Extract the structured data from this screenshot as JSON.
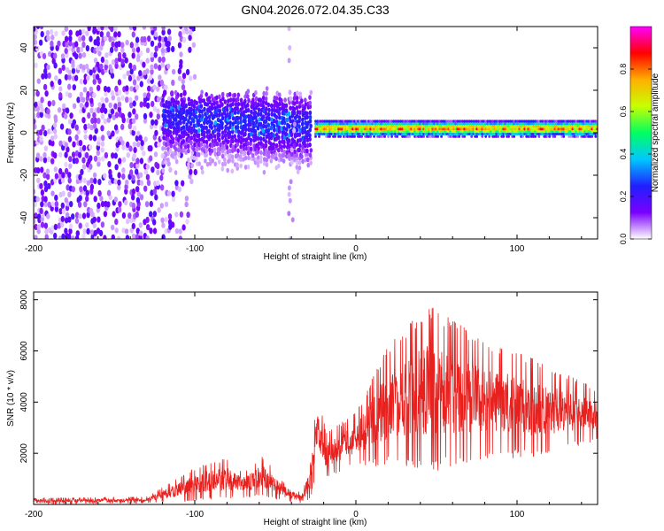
{
  "title": "GN04.2026.072.04.35.C33",
  "chart_data": [
    {
      "type": "heatmap",
      "panel": "spectrogram",
      "xlabel": "Height of straight line (km)",
      "ylabel": "Frequency (Hz)",
      "xlim": [
        -200,
        150
      ],
      "ylim": [
        -50,
        50
      ],
      "x_ticks": [
        -200,
        -100,
        0,
        100
      ],
      "x_tick_labels": [
        "-200",
        "-100",
        "0",
        "100"
      ],
      "y_ticks": [
        -40,
        -20,
        0,
        20,
        40
      ],
      "y_tick_labels": [
        "-40",
        "-20",
        "0",
        "20",
        "40"
      ],
      "colorbar": {
        "label": "Normalized spectral amplitude",
        "range": [
          0,
          1
        ],
        "ticks": [
          0.0,
          0.2,
          0.4,
          0.6,
          0.8
        ],
        "tick_labels": [
          "0.0",
          "0.2",
          "0.4",
          "0.6",
          "0.8"
        ],
        "colormap": [
          "#ffffff",
          "#7a00ff",
          "#2020ff",
          "#00c8ff",
          "#00ff60",
          "#c8ff00",
          "#ffb000",
          "#ff0000",
          "#ff00ff"
        ]
      },
      "features": {
        "noise_region_km": [
          -200,
          -105
        ],
        "signal_line_km": [
          -25,
          150
        ],
        "signal_line_freq_hz": 2,
        "peak_amplitude": 0.9,
        "interference_stripe_km": -40
      }
    },
    {
      "type": "line",
      "panel": "snr",
      "xlabel": "Height of straight line (km)",
      "ylabel": "SNR (10 * v/v)",
      "xlim": [
        -200,
        150
      ],
      "ylim": [
        0,
        8300
      ],
      "x_ticks": [
        -200,
        -100,
        0,
        100
      ],
      "x_tick_labels": [
        "-200",
        "-100",
        "0",
        "100"
      ],
      "y_ticks": [
        2000,
        4000,
        6000,
        8000
      ],
      "y_tick_labels": [
        "2000",
        "4000",
        "6000",
        "8000"
      ],
      "line_color": "#e8201e",
      "envelope": [
        {
          "x": -200,
          "low": 0,
          "high": 250
        },
        {
          "x": -130,
          "low": 50,
          "high": 300
        },
        {
          "x": -95,
          "low": 150,
          "high": 1600
        },
        {
          "x": -80,
          "low": 200,
          "high": 1800
        },
        {
          "x": -70,
          "low": 250,
          "high": 1300
        },
        {
          "x": -58,
          "low": 300,
          "high": 1900
        },
        {
          "x": -45,
          "low": 100,
          "high": 900
        },
        {
          "x": -33,
          "low": 50,
          "high": 400
        },
        {
          "x": -28,
          "low": 200,
          "high": 2200
        },
        {
          "x": -24,
          "low": 1500,
          "high": 4200
        },
        {
          "x": -18,
          "low": 1000,
          "high": 2800
        },
        {
          "x": 0,
          "low": 1500,
          "high": 3600
        },
        {
          "x": 20,
          "low": 1500,
          "high": 6200
        },
        {
          "x": 45,
          "low": 1200,
          "high": 7800
        },
        {
          "x": 80,
          "low": 1800,
          "high": 6400
        },
        {
          "x": 110,
          "low": 1800,
          "high": 5700
        },
        {
          "x": 150,
          "low": 2500,
          "high": 4500
        }
      ]
    }
  ]
}
